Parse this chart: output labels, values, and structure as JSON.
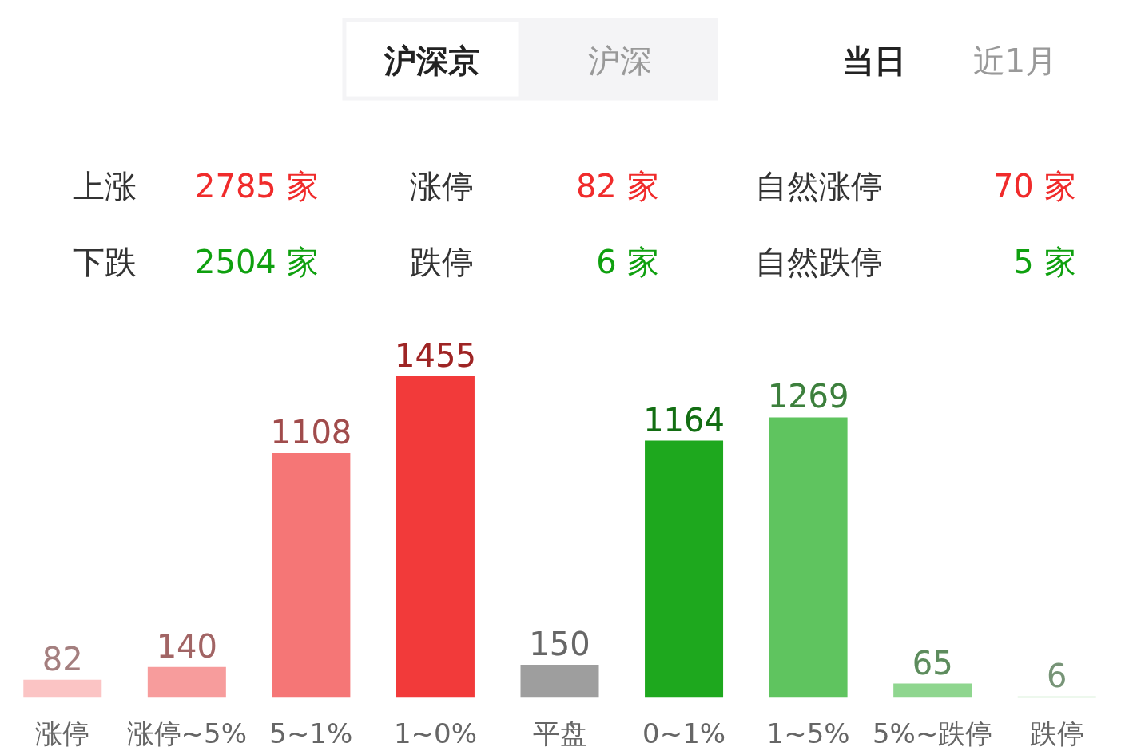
{
  "chart_data": {
    "type": "bar",
    "categories": [
      "涨停",
      "涨停~5%",
      "5~1%",
      "1~0%",
      "平盘",
      "0~1%",
      "1~5%",
      "5%~跌停",
      "跌停"
    ],
    "values": [
      82,
      140,
      1108,
      1455,
      150,
      1164,
      1269,
      65,
      6
    ],
    "colors": [
      "#fbc4c4",
      "#f79c9c",
      "#f57676",
      "#f23a3a",
      "#9e9e9e",
      "#1ea81e",
      "#5fc45f",
      "#8fd68f",
      "#b9e4b9"
    ],
    "data_labels": true,
    "grid": false,
    "annotations": [
      "沪深京",
      "沪深",
      "当日",
      "近1月",
      "上涨",
      "2785 家",
      "涨停",
      "82 家",
      "自然涨停",
      "70 家",
      "下跌",
      "2504 家",
      "跌停",
      "6 家",
      "自然跌停",
      "5 家"
    ]
  }
}
